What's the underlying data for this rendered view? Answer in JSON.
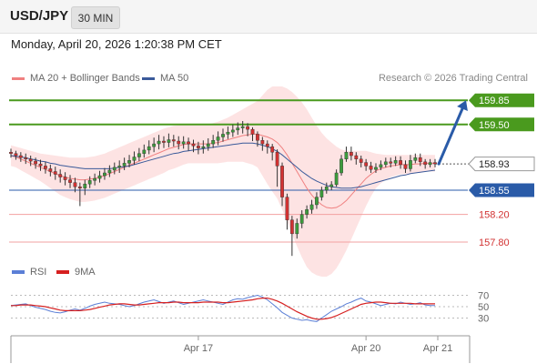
{
  "header": {
    "symbol": "USD/JPY",
    "timeframe": "30 MIN"
  },
  "timestamp": "Monday, April 20, 2026 1:20:38 PM CET",
  "legend": {
    "ma20": {
      "label": "MA 20 + Bollinger Bands",
      "color": "#f08080"
    },
    "ma50": {
      "label": "MA 50",
      "color": "#3a5a9a"
    }
  },
  "credit": "Research © 2026 Trading Central",
  "rsi_legend": {
    "rsi": {
      "label": "RSI",
      "color": "#5b7fd6"
    },
    "ma9": {
      "label": "9MA",
      "color": "#d62020"
    }
  },
  "chart_data": {
    "type": "candlestick",
    "price_scale": [
      157.55,
      160.05
    ],
    "levels": [
      {
        "label": "159.85",
        "value": 159.85,
        "style": "green-filled"
      },
      {
        "label": "159.50",
        "value": 159.5,
        "style": "green-filled"
      },
      {
        "label": "158.93",
        "value": 158.93,
        "style": "current"
      },
      {
        "label": "158.55",
        "value": 158.55,
        "style": "blue-filled"
      },
      {
        "label": "158.20",
        "value": 158.2,
        "style": "red-text"
      },
      {
        "label": "157.80",
        "value": 157.8,
        "style": "red-text"
      }
    ],
    "projection": {
      "from": 158.93,
      "to": 159.85,
      "color": "#2a5ba8"
    },
    "x_ticks": [
      "Apr 17",
      "Apr 20",
      "Apr 21"
    ],
    "rsi_ticks": [
      "70",
      "50",
      "30"
    ],
    "rsi_range": [
      10,
      90
    ],
    "candles": [
      [
        159.1,
        159.08,
        159.15,
        159.02
      ],
      [
        159.08,
        159.05,
        159.12,
        158.99
      ],
      [
        159.05,
        159.02,
        159.1,
        158.96
      ],
      [
        159.02,
        159.0,
        159.08,
        158.93
      ],
      [
        159.0,
        158.97,
        159.05,
        158.9
      ],
      [
        158.97,
        158.93,
        159.02,
        158.86
      ],
      [
        158.93,
        158.9,
        158.99,
        158.83
      ],
      [
        158.9,
        158.86,
        158.96,
        158.79
      ],
      [
        158.86,
        158.82,
        158.92,
        158.75
      ],
      [
        158.82,
        158.78,
        158.89,
        158.7
      ],
      [
        158.78,
        158.74,
        158.85,
        158.66
      ],
      [
        158.74,
        158.7,
        158.81,
        158.62
      ],
      [
        158.7,
        158.66,
        158.77,
        158.58
      ],
      [
        158.66,
        158.6,
        158.73,
        158.52
      ],
      [
        158.6,
        158.58,
        158.66,
        158.32
      ],
      [
        158.58,
        158.64,
        158.7,
        158.48
      ],
      [
        158.64,
        158.69,
        158.75,
        158.58
      ],
      [
        158.69,
        158.72,
        158.79,
        158.62
      ],
      [
        158.72,
        158.76,
        158.83,
        158.66
      ],
      [
        158.76,
        158.8,
        158.87,
        158.7
      ],
      [
        158.8,
        158.84,
        158.91,
        158.74
      ],
      [
        158.84,
        158.88,
        158.95,
        158.78
      ],
      [
        158.88,
        158.9,
        158.98,
        158.8
      ],
      [
        158.9,
        158.94,
        159.02,
        158.84
      ],
      [
        158.94,
        158.98,
        159.06,
        158.88
      ],
      [
        158.98,
        159.03,
        159.11,
        158.92
      ],
      [
        159.03,
        159.08,
        159.16,
        158.97
      ],
      [
        159.08,
        159.13,
        159.21,
        159.02
      ],
      [
        159.13,
        159.18,
        159.27,
        159.07
      ],
      [
        159.18,
        159.22,
        159.31,
        159.1
      ],
      [
        159.22,
        159.26,
        159.35,
        159.14
      ],
      [
        159.26,
        159.24,
        159.33,
        159.16
      ],
      [
        159.24,
        159.28,
        159.37,
        159.17
      ],
      [
        159.28,
        159.26,
        159.35,
        159.18
      ],
      [
        159.26,
        159.22,
        159.33,
        159.14
      ],
      [
        159.22,
        159.25,
        159.33,
        159.15
      ],
      [
        159.25,
        159.22,
        159.31,
        159.12
      ],
      [
        159.22,
        159.19,
        159.28,
        159.1
      ],
      [
        159.19,
        159.16,
        159.25,
        159.07
      ],
      [
        159.16,
        159.18,
        159.27,
        159.08
      ],
      [
        159.18,
        159.22,
        159.3,
        159.12
      ],
      [
        159.22,
        159.27,
        159.35,
        159.16
      ],
      [
        159.27,
        159.32,
        159.4,
        159.2
      ],
      [
        159.32,
        159.36,
        159.44,
        159.25
      ],
      [
        159.36,
        159.39,
        159.47,
        159.29
      ],
      [
        159.39,
        159.42,
        159.5,
        159.32
      ],
      [
        159.42,
        159.45,
        159.53,
        159.35
      ],
      [
        159.45,
        159.47,
        159.55,
        159.37
      ],
      [
        159.47,
        159.43,
        159.52,
        159.33
      ],
      [
        159.43,
        159.36,
        159.46,
        159.26
      ],
      [
        159.36,
        159.27,
        159.4,
        159.18
      ],
      [
        159.27,
        159.22,
        159.32,
        159.12
      ],
      [
        159.22,
        159.18,
        159.27,
        159.08
      ],
      [
        159.18,
        159.1,
        159.22,
        158.98
      ],
      [
        159.1,
        158.9,
        159.14,
        158.6
      ],
      [
        158.9,
        158.45,
        158.95,
        158.32
      ],
      [
        158.45,
        158.12,
        158.5,
        157.98
      ],
      [
        158.12,
        157.92,
        158.18,
        157.6
      ],
      [
        157.92,
        158.07,
        158.14,
        157.85
      ],
      [
        158.07,
        158.2,
        158.26,
        158.0
      ],
      [
        158.2,
        158.27,
        158.33,
        158.14
      ],
      [
        158.27,
        158.34,
        158.41,
        158.21
      ],
      [
        158.34,
        158.45,
        158.52,
        158.28
      ],
      [
        158.45,
        158.55,
        158.6,
        158.4
      ],
      [
        158.55,
        158.6,
        158.66,
        158.5
      ],
      [
        158.6,
        158.63,
        158.68,
        158.55
      ],
      [
        158.63,
        158.8,
        158.85,
        158.6
      ],
      [
        158.8,
        159.0,
        159.06,
        158.76
      ],
      [
        159.0,
        159.1,
        159.18,
        158.96
      ],
      [
        159.1,
        159.05,
        159.18,
        158.98
      ],
      [
        159.05,
        159.0,
        159.1,
        158.92
      ],
      [
        159.0,
        158.95,
        159.05,
        158.88
      ],
      [
        158.95,
        158.9,
        159.0,
        158.83
      ],
      [
        158.9,
        158.85,
        158.96,
        158.8
      ],
      [
        158.85,
        158.88,
        158.94,
        158.8
      ],
      [
        158.88,
        158.92,
        158.98,
        158.84
      ],
      [
        158.92,
        158.96,
        159.02,
        158.88
      ],
      [
        158.96,
        158.94,
        159.02,
        158.88
      ],
      [
        158.94,
        158.98,
        159.04,
        158.9
      ],
      [
        158.98,
        158.92,
        159.04,
        158.86
      ],
      [
        158.92,
        158.86,
        158.98,
        158.8
      ],
      [
        158.86,
        158.98,
        159.06,
        158.82
      ],
      [
        158.98,
        159.02,
        159.08,
        158.94
      ],
      [
        159.02,
        158.96,
        159.08,
        158.9
      ],
      [
        158.96,
        158.92,
        159.0,
        158.86
      ],
      [
        158.92,
        158.95,
        159.0,
        158.88
      ],
      [
        158.95,
        158.93,
        159.0,
        158.88
      ]
    ],
    "ma20": [
      159.05,
      159.03,
      159.0,
      158.97,
      158.94,
      158.91,
      158.88,
      158.85,
      158.82,
      158.79,
      158.76,
      158.74,
      158.72,
      158.71,
      158.7,
      158.7,
      158.71,
      158.72,
      158.74,
      158.76,
      158.79,
      158.82,
      158.85,
      158.88,
      158.91,
      158.94,
      158.97,
      159.0,
      159.03,
      159.06,
      159.09,
      159.12,
      159.15,
      159.17,
      159.19,
      159.21,
      159.22,
      159.22,
      159.22,
      159.22,
      159.22,
      159.23,
      159.24,
      159.26,
      159.28,
      159.3,
      159.32,
      159.34,
      159.35,
      159.36,
      159.36,
      159.34,
      159.32,
      159.29,
      159.24,
      159.16,
      159.06,
      158.94,
      158.82,
      158.7,
      158.58,
      158.48,
      158.4,
      158.34,
      158.3,
      158.29,
      158.3,
      158.34,
      158.4,
      158.48,
      158.56,
      158.64,
      158.72,
      158.78,
      158.83,
      158.86,
      158.88,
      158.9,
      158.91,
      158.92,
      158.92,
      158.92,
      158.93,
      158.93,
      158.94,
      158.94,
      158.94
    ],
    "bb_upper": [
      159.2,
      159.18,
      159.16,
      159.14,
      159.12,
      159.1,
      159.08,
      159.07,
      159.06,
      159.05,
      159.04,
      159.03,
      159.02,
      159.02,
      159.02,
      159.02,
      159.03,
      159.04,
      159.06,
      159.08,
      159.11,
      159.14,
      159.17,
      159.2,
      159.23,
      159.26,
      159.29,
      159.32,
      159.35,
      159.38,
      159.41,
      159.44,
      159.46,
      159.48,
      159.49,
      159.5,
      159.5,
      159.5,
      159.5,
      159.5,
      159.5,
      159.52,
      159.54,
      159.57,
      159.6,
      159.64,
      159.68,
      159.72,
      159.76,
      159.8,
      159.84,
      159.92,
      160.0,
      160.05,
      160.05,
      160.05,
      160.02,
      159.97,
      159.9,
      159.82,
      159.72,
      159.6,
      159.48,
      159.38,
      159.3,
      159.24,
      159.18,
      159.14,
      159.12,
      159.12,
      159.12,
      159.12,
      159.12,
      159.1,
      159.08,
      159.07,
      159.06,
      159.06,
      159.06,
      159.06,
      159.06,
      159.06,
      159.06,
      159.06,
      159.06,
      159.06,
      159.06
    ],
    "bb_lower": [
      158.9,
      158.88,
      158.84,
      158.8,
      158.76,
      158.72,
      158.68,
      158.63,
      158.58,
      158.53,
      158.48,
      158.45,
      158.42,
      158.4,
      158.38,
      158.38,
      158.39,
      158.4,
      158.42,
      158.44,
      158.47,
      158.5,
      158.53,
      158.56,
      158.59,
      158.62,
      158.65,
      158.68,
      158.71,
      158.74,
      158.77,
      158.8,
      158.84,
      158.86,
      158.89,
      158.92,
      158.94,
      158.94,
      158.94,
      158.94,
      158.94,
      158.94,
      158.94,
      158.95,
      158.96,
      158.96,
      158.96,
      158.96,
      158.94,
      158.92,
      158.88,
      158.76,
      158.64,
      158.53,
      158.43,
      158.27,
      158.1,
      157.91,
      157.74,
      157.58,
      157.44,
      157.36,
      157.32,
      157.3,
      157.3,
      157.34,
      157.42,
      157.54,
      157.68,
      157.84,
      158.0,
      158.16,
      158.32,
      158.46,
      158.58,
      158.65,
      158.7,
      158.74,
      158.76,
      158.78,
      158.78,
      158.78,
      158.8,
      158.8,
      158.82,
      158.82,
      158.82
    ],
    "ma50": [
      159.05,
      159.04,
      159.03,
      159.02,
      159.0,
      158.99,
      158.97,
      158.96,
      158.94,
      158.93,
      158.91,
      158.9,
      158.89,
      158.88,
      158.87,
      158.86,
      158.86,
      158.86,
      158.86,
      158.86,
      158.86,
      158.87,
      158.88,
      158.89,
      158.9,
      158.92,
      158.94,
      158.96,
      158.98,
      159.0,
      159.02,
      159.04,
      159.06,
      159.08,
      159.09,
      159.11,
      159.12,
      159.13,
      159.14,
      159.15,
      159.16,
      159.17,
      159.18,
      159.19,
      159.2,
      159.21,
      159.22,
      159.23,
      159.23,
      159.23,
      159.22,
      159.2,
      159.18,
      159.15,
      159.11,
      159.06,
      159.0,
      158.94,
      158.88,
      158.82,
      158.77,
      158.72,
      158.68,
      158.65,
      158.62,
      158.6,
      158.59,
      158.58,
      158.58,
      158.58,
      158.59,
      158.6,
      158.62,
      158.64,
      158.66,
      158.68,
      158.7,
      158.72,
      158.74,
      158.76,
      158.77,
      158.79,
      158.8,
      158.81,
      158.82,
      158.83,
      158.84
    ],
    "rsi": [
      52,
      53,
      54,
      55,
      52,
      49,
      47,
      45,
      42,
      40,
      39,
      41,
      44,
      46,
      44,
      47,
      51,
      54,
      56,
      58,
      56,
      55,
      54,
      52,
      50,
      52,
      55,
      58,
      60,
      62,
      59,
      56,
      58,
      60,
      57,
      54,
      56,
      58,
      60,
      62,
      60,
      58,
      56,
      54,
      58,
      62,
      64,
      63,
      66,
      68,
      70,
      67,
      62,
      55,
      48,
      40,
      35,
      30,
      28,
      26,
      27,
      25,
      24,
      30,
      36,
      42,
      46,
      50,
      55,
      58,
      62,
      65,
      60,
      58,
      55,
      52,
      54,
      56,
      55,
      58,
      56,
      54,
      55,
      57,
      53,
      52,
      52
    ],
    "rsi_ma": [
      52,
      52,
      53,
      53,
      53,
      52,
      51,
      50,
      48,
      46,
      44,
      43,
      43,
      43,
      43,
      44,
      45,
      47,
      49,
      51,
      53,
      54,
      55,
      55,
      54,
      53,
      53,
      54,
      55,
      56,
      57,
      57,
      57,
      58,
      58,
      57,
      57,
      57,
      57,
      58,
      58,
      58,
      58,
      57,
      57,
      58,
      59,
      60,
      61,
      62,
      64,
      65,
      65,
      63,
      60,
      56,
      51,
      46,
      41,
      37,
      33,
      30,
      28,
      28,
      29,
      31,
      34,
      38,
      42,
      46,
      50,
      54,
      56,
      57,
      58,
      58,
      57,
      56,
      56,
      56,
      56,
      56,
      55,
      55,
      55,
      55,
      55
    ]
  }
}
